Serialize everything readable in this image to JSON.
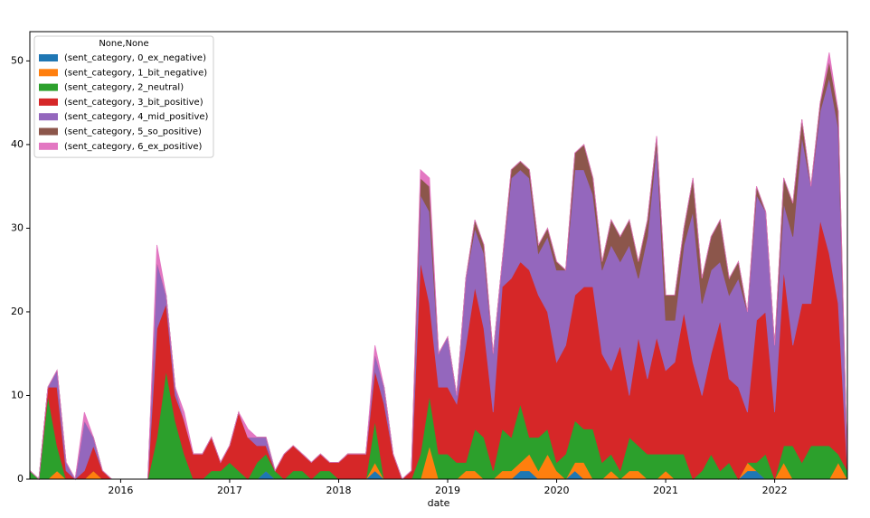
{
  "chart_data": {
    "type": "area",
    "x_label": "date",
    "legend_title": "None,None",
    "legend": "upper left",
    "stacked": true,
    "x": [
      2015.167,
      2015.25,
      2015.333,
      2015.417,
      2015.5,
      2015.583,
      2015.667,
      2015.75,
      2015.833,
      2015.917,
      2016,
      2016.083,
      2016.167,
      2016.25,
      2016.333,
      2016.417,
      2016.5,
      2016.583,
      2016.667,
      2016.75,
      2016.833,
      2016.917,
      2017,
      2017.083,
      2017.167,
      2017.25,
      2017.333,
      2017.417,
      2017.5,
      2017.583,
      2017.667,
      2017.75,
      2017.833,
      2017.917,
      2018,
      2018.083,
      2018.167,
      2018.25,
      2018.333,
      2018.417,
      2018.5,
      2018.583,
      2018.667,
      2018.75,
      2018.833,
      2018.917,
      2019,
      2019.083,
      2019.167,
      2019.25,
      2019.333,
      2019.417,
      2019.5,
      2019.583,
      2019.667,
      2019.75,
      2019.833,
      2019.917,
      2020,
      2020.083,
      2020.167,
      2020.25,
      2020.333,
      2020.417,
      2020.5,
      2020.583,
      2020.667,
      2020.75,
      2020.833,
      2020.917,
      2021,
      2021.083,
      2021.167,
      2021.25,
      2021.333,
      2021.417,
      2021.5,
      2021.583,
      2021.667,
      2021.75,
      2021.833,
      2021.917,
      2022,
      2022.083,
      2022.167,
      2022.25,
      2022.333,
      2022.417,
      2022.5,
      2022.583,
      2022.667
    ],
    "xlim": [
      2015.167,
      2022.667
    ],
    "xticks": [
      2016,
      2017,
      2018,
      2019,
      2020,
      2021,
      2022
    ],
    "ylim": [
      0,
      53.5
    ],
    "yticks": [
      0,
      10,
      20,
      30,
      40,
      50
    ],
    "series": [
      {
        "name": "(sent_category, 0_ex_negative)",
        "color": "#1f77b4",
        "values": [
          0,
          0,
          0,
          0,
          0,
          0,
          0,
          0,
          0,
          0,
          0,
          0,
          0,
          0,
          0,
          0,
          0,
          0,
          0,
          0,
          0,
          0,
          0,
          0,
          0,
          0,
          1,
          0,
          0,
          0,
          0,
          0,
          0,
          0,
          0,
          0,
          0,
          0,
          1,
          0,
          0,
          0,
          0,
          0,
          0,
          0,
          0,
          0,
          0,
          0,
          0,
          0,
          0,
          0,
          1,
          1,
          0,
          0,
          0,
          0,
          1,
          0,
          0,
          0,
          0,
          0,
          0,
          0,
          0,
          0,
          0,
          0,
          0,
          0,
          0,
          0,
          0,
          0,
          0,
          1,
          1,
          0,
          0,
          0,
          0,
          0,
          0,
          0,
          0,
          0,
          0
        ]
      },
      {
        "name": "(sent_category, 1_bit_negative)",
        "color": "#ff7f0e",
        "values": [
          0,
          0,
          0,
          1,
          0,
          0,
          0,
          1,
          0,
          0,
          0,
          0,
          0,
          0,
          0,
          0,
          0,
          0,
          0,
          0,
          0,
          0,
          0,
          0,
          0,
          0,
          0,
          0,
          0,
          0,
          0,
          0,
          0,
          0,
          0,
          0,
          0,
          0,
          1,
          0,
          0,
          0,
          0,
          0,
          4,
          0,
          0,
          0,
          1,
          1,
          0,
          0,
          1,
          1,
          1,
          2,
          1,
          3,
          1,
          0,
          1,
          2,
          0,
          0,
          1,
          0,
          1,
          1,
          0,
          0,
          1,
          0,
          0,
          0,
          0,
          0,
          0,
          0,
          0,
          1,
          0,
          0,
          0,
          2,
          0,
          0,
          0,
          0,
          0,
          2,
          0
        ]
      },
      {
        "name": "(sent_category, 2_neutral)",
        "color": "#2ca02c",
        "values": [
          1,
          0,
          10,
          3,
          0,
          0,
          0,
          0,
          0,
          0,
          0,
          0,
          0,
          0,
          5,
          13,
          7,
          3,
          0,
          0,
          1,
          1,
          2,
          1,
          0,
          2,
          2,
          1,
          0,
          1,
          1,
          0,
          1,
          1,
          0,
          0,
          0,
          0,
          5,
          0,
          0,
          0,
          0,
          3,
          6,
          3,
          3,
          2,
          1,
          5,
          5,
          1,
          5,
          4,
          7,
          2,
          4,
          3,
          1,
          3,
          5,
          4,
          6,
          2,
          2,
          1,
          4,
          3,
          3,
          3,
          2,
          3,
          3,
          0,
          1,
          3,
          1,
          2,
          0,
          0,
          1,
          3,
          0,
          2,
          4,
          2,
          4,
          4,
          4,
          1,
          1
        ]
      },
      {
        "name": "(sent_category, 3_bit_positive)",
        "color": "#d62728",
        "values": [
          0,
          0,
          1,
          7,
          1,
          0,
          1,
          3,
          1,
          0,
          0,
          0,
          0,
          0,
          13,
          8,
          3,
          4,
          3,
          3,
          4,
          1,
          2,
          7,
          5,
          2,
          1,
          0,
          3,
          3,
          2,
          2,
          2,
          1,
          2,
          3,
          3,
          3,
          6,
          9,
          3,
          0,
          1,
          23,
          11,
          8,
          8,
          7,
          14,
          17,
          13,
          7,
          17,
          19,
          17,
          20,
          17,
          14,
          12,
          13,
          15,
          17,
          17,
          13,
          10,
          15,
          5,
          13,
          9,
          14,
          10,
          11,
          17,
          14,
          9,
          12,
          18,
          10,
          11,
          6,
          17,
          17,
          8,
          21,
          12,
          19,
          17,
          27,
          23,
          18,
          0
        ]
      },
      {
        "name": "(sent_category, 4_mid_positive)",
        "color": "#9467bd",
        "values": [
          0,
          0,
          0,
          2,
          1,
          0,
          6,
          1,
          0,
          0,
          0,
          0,
          0,
          0,
          8,
          1,
          1,
          0,
          0,
          0,
          0,
          0,
          0,
          0,
          0,
          1,
          1,
          0,
          0,
          0,
          0,
          0,
          0,
          0,
          0,
          0,
          0,
          0,
          2,
          2,
          0,
          0,
          0,
          8,
          11,
          4,
          6,
          1,
          8,
          7,
          9,
          7,
          3,
          12,
          11,
          11,
          5,
          9,
          11,
          9,
          15,
          14,
          11,
          10,
          15,
          10,
          18,
          7,
          17,
          23,
          6,
          5,
          8,
          18,
          11,
          10,
          7,
          10,
          13,
          12,
          15,
          12,
          8,
          8,
          13,
          20,
          14,
          13,
          21,
          21,
          0
        ]
      },
      {
        "name": "(sent_category, 5_so_positive)",
        "color": "#8c564b",
        "values": [
          0,
          0,
          0,
          0,
          0,
          0,
          0,
          0,
          0,
          0,
          0,
          0,
          0,
          0,
          0,
          0,
          0,
          0,
          0,
          0,
          0,
          0,
          0,
          0,
          0,
          0,
          0,
          0,
          0,
          0,
          0,
          0,
          0,
          0,
          0,
          0,
          0,
          0,
          0,
          0,
          0,
          0,
          0,
          2,
          3,
          0,
          0,
          0,
          0,
          1,
          1,
          0,
          0,
          1,
          1,
          1,
          1,
          1,
          1,
          0,
          2,
          3,
          2,
          1,
          3,
          3,
          3,
          2,
          2,
          1,
          3,
          3,
          2,
          4,
          3,
          4,
          5,
          2,
          2,
          0,
          1,
          0,
          0,
          3,
          4,
          2,
          0,
          1,
          2,
          2,
          0
        ]
      },
      {
        "name": "(sent_category, 6_ex_positive)",
        "color": "#e377c2",
        "values": [
          0,
          0,
          0,
          0,
          0,
          0,
          1,
          0,
          0,
          0,
          0,
          0,
          0,
          0,
          2,
          0,
          0,
          1,
          0,
          0,
          0,
          0,
          0,
          0,
          1,
          0,
          0,
          0,
          0,
          0,
          0,
          0,
          0,
          0,
          0,
          0,
          0,
          0,
          1,
          0,
          0,
          0,
          0,
          1,
          1,
          0,
          0,
          0,
          0,
          0,
          0,
          0,
          0,
          0,
          0,
          0,
          0,
          0,
          0,
          0,
          0,
          0,
          0,
          0,
          0,
          0,
          0,
          0,
          0,
          0,
          0,
          0,
          0,
          0,
          0,
          0,
          0,
          0,
          0,
          0,
          0,
          0,
          0,
          0,
          0,
          0,
          0,
          0,
          1,
          0,
          0
        ]
      }
    ]
  }
}
